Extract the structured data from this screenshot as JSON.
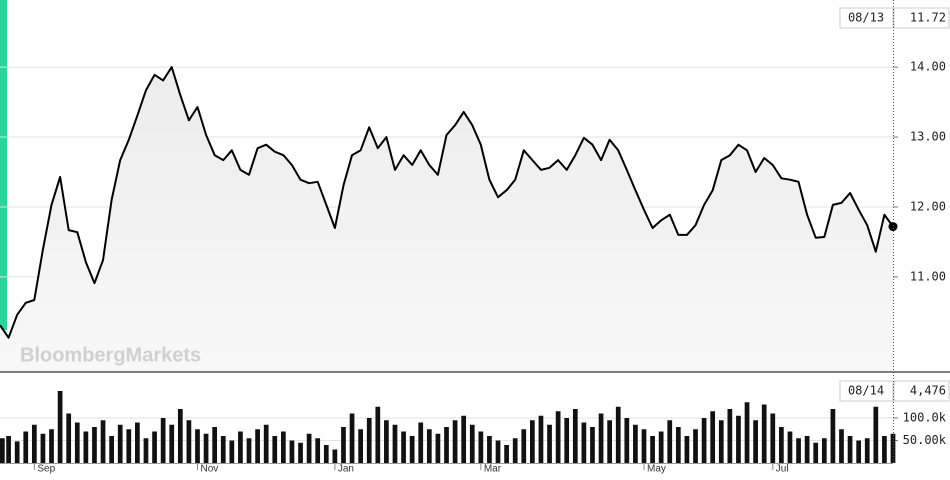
{
  "watermark": "BloombergMarkets",
  "chart_data": [
    {
      "type": "line",
      "color": "#000000",
      "values": [
        10.31,
        10.13,
        10.46,
        10.63,
        10.67,
        11.39,
        12.03,
        12.43,
        11.67,
        11.64,
        11.21,
        10.91,
        11.24,
        12.1,
        12.67,
        12.96,
        13.31,
        13.67,
        13.89,
        13.81,
        14.0,
        13.6,
        13.24,
        13.43,
        13.03,
        12.74,
        12.67,
        12.81,
        12.53,
        12.46,
        12.84,
        12.89,
        12.79,
        12.74,
        12.6,
        12.39,
        12.34,
        12.36,
        12.03,
        11.7,
        12.31,
        12.74,
        12.81,
        13.14,
        12.84,
        13.0,
        12.53,
        12.74,
        12.6,
        12.81,
        12.6,
        12.46,
        13.03,
        13.17,
        13.36,
        13.17,
        12.89,
        12.39,
        12.14,
        12.24,
        12.39,
        12.81,
        12.67,
        12.53,
        12.56,
        12.67,
        12.53,
        12.74,
        12.99,
        12.89,
        12.67,
        12.96,
        12.81,
        12.53,
        12.24,
        11.96,
        11.7,
        11.81,
        11.89,
        11.6,
        11.6,
        11.74,
        12.03,
        12.24,
        12.67,
        12.74,
        12.89,
        12.81,
        12.5,
        12.7,
        12.6,
        12.41,
        12.39,
        12.36,
        11.89,
        11.56,
        11.57,
        12.03,
        12.06,
        12.2,
        11.96,
        11.74,
        11.36,
        11.89,
        11.72
      ],
      "ylim": [
        9.64,
        14.96
      ],
      "yticks": [
        {
          "value": 11,
          "label": "11.00"
        },
        {
          "value": 12,
          "label": "12.00"
        },
        {
          "value": 13,
          "label": "13.00"
        },
        {
          "value": 14,
          "label": "14.00"
        }
      ],
      "grid": true,
      "last": {
        "date": "08/13",
        "value": 11.72
      }
    },
    {
      "type": "bar",
      "color": "#111111",
      "categories": [
        null,
        null,
        null,
        null,
        "Sep",
        null,
        null,
        null,
        null,
        null,
        null,
        null,
        null,
        null,
        null,
        null,
        null,
        null,
        null,
        null,
        null,
        null,
        null,
        "Nov",
        null,
        null,
        null,
        null,
        null,
        null,
        null,
        null,
        null,
        null,
        null,
        null,
        null,
        null,
        null,
        "Jan",
        null,
        null,
        null,
        null,
        null,
        null,
        null,
        null,
        null,
        null,
        null,
        null,
        null,
        null,
        null,
        null,
        "Mar",
        null,
        null,
        null,
        null,
        null,
        null,
        null,
        null,
        null,
        null,
        null,
        null,
        null,
        null,
        null,
        null,
        null,
        null,
        "May",
        null,
        null,
        null,
        null,
        null,
        null,
        null,
        null,
        null,
        null,
        null,
        null,
        null,
        null,
        "Jul",
        null,
        null,
        null,
        null,
        null,
        null,
        null,
        null,
        null,
        null,
        null,
        null,
        null,
        null
      ],
      "values": [
        55000,
        60000,
        48000,
        70000,
        85000,
        65000,
        75000,
        160000,
        110000,
        90000,
        70000,
        80000,
        95000,
        60000,
        85000,
        75000,
        90000,
        55000,
        70000,
        100000,
        85000,
        120000,
        95000,
        75000,
        65000,
        80000,
        60000,
        50000,
        70000,
        55000,
        75000,
        85000,
        60000,
        70000,
        50000,
        45000,
        65000,
        55000,
        40000,
        30000,
        80000,
        110000,
        75000,
        100000,
        125000,
        95000,
        85000,
        70000,
        60000,
        90000,
        75000,
        65000,
        80000,
        95000,
        105000,
        85000,
        70000,
        60000,
        50000,
        40000,
        55000,
        75000,
        95000,
        105000,
        85000,
        115000,
        100000,
        120000,
        90000,
        80000,
        110000,
        95000,
        125000,
        100000,
        85000,
        75000,
        60000,
        70000,
        95000,
        80000,
        60000,
        75000,
        100000,
        115000,
        95000,
        120000,
        105000,
        135000,
        95000,
        130000,
        110000,
        80000,
        70000,
        55000,
        60000,
        45000,
        55000,
        120000,
        75000,
        60000,
        50000,
        55000,
        125000,
        60000,
        65000
      ],
      "ylim": [
        0,
        200000
      ],
      "yticks": [
        {
          "value": 50000,
          "label": "50.00k"
        },
        {
          "value": 100000,
          "label": "100.0k"
        }
      ],
      "grid": true,
      "last": {
        "date": "08/14",
        "value": {
          "value": 4476,
          "label": "4,476"
        }
      }
    }
  ]
}
